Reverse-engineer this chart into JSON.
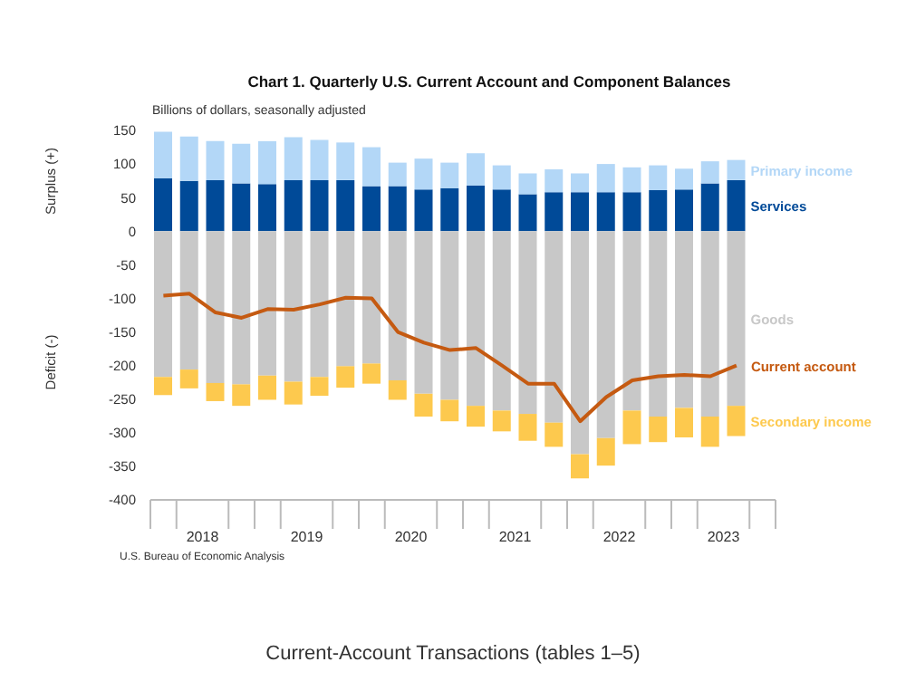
{
  "chart_data": {
    "type": "bar",
    "title": "Chart 1. Quarterly U.S. Current Account and Component Balances",
    "subtitle": "Billions of dollars, seasonally adjusted",
    "ylabel": "Surplus (+)",
    "annotations": [
      "Deficit (-)",
      "U.S. Bureau of Economic Analysis",
      "Current-Account Transactions (tables 1–5)"
    ],
    "x": [
      2018.125,
      2018.375,
      2018.625,
      2018.875,
      2019.125,
      2019.375,
      2019.625,
      2019.875,
      2020.125,
      2020.375,
      2020.625,
      2020.875,
      2021.125,
      2021.375,
      2021.625,
      2021.875,
      2022.125,
      2022.375,
      2022.625,
      2022.875,
      2023.125,
      2023.375,
      2023.625
    ],
    "stacked": true,
    "series": [
      {
        "name": "Services",
        "color": "#004a98",
        "values": [
          79,
          75,
          76,
          71,
          70,
          76,
          76,
          76,
          67,
          67,
          62,
          64,
          68,
          62,
          55,
          58,
          58,
          58,
          58,
          61,
          62,
          71,
          76
        ]
      },
      {
        "name": "Primary income",
        "color": "#b3d7f7",
        "values": [
          69,
          66,
          58,
          59,
          64,
          64,
          60,
          56,
          58,
          35,
          46,
          38,
          48,
          36,
          31,
          34,
          28,
          42,
          37,
          37,
          31,
          33,
          30
        ]
      },
      {
        "name": "Goods",
        "color": "#c8c8c8",
        "values": [
          -217,
          -206,
          -226,
          -228,
          -215,
          -224,
          -217,
          -201,
          -197,
          -222,
          -242,
          -251,
          -260,
          -267,
          -272,
          -285,
          -332,
          -308,
          -267,
          -276,
          -263,
          -276,
          -260
        ]
      },
      {
        "name": "Secondary income",
        "color": "#fdc94e",
        "values": [
          -27,
          -28,
          -27,
          -32,
          -36,
          -34,
          -28,
          -32,
          -30,
          -29,
          -34,
          -32,
          -31,
          -31,
          -40,
          -36,
          -36,
          -41,
          -50,
          -38,
          -44,
          -45,
          -45
        ]
      },
      {
        "name": "Current account",
        "type": "line",
        "color": "#c55a11",
        "values": [
          -96,
          -93,
          -121,
          -129,
          -116,
          -117,
          -109,
          -99,
          -100,
          -150,
          -166,
          -177,
          -174,
          -200,
          -227,
          -227,
          -283,
          -247,
          -222,
          -216,
          -214,
          -216,
          -200
        ]
      }
    ],
    "ylim": [
      -400,
      150
    ],
    "yticks": [
      -400,
      -350,
      -300,
      -250,
      -200,
      -150,
      -100,
      -50,
      0,
      50,
      100,
      150
    ],
    "xlim": [
      2018,
      2024
    ],
    "xticks": [
      {
        "value": 2018,
        "label": null
      },
      {
        "value": 2018.25,
        "label": null
      },
      {
        "value": 2018.5,
        "label": "2018"
      },
      {
        "value": 2018.75,
        "label": null
      },
      {
        "value": 2019,
        "label": null
      },
      {
        "value": 2019.25,
        "label": null
      },
      {
        "value": 2019.5,
        "label": "2019"
      },
      {
        "value": 2019.75,
        "label": null
      },
      {
        "value": 2020,
        "label": null
      },
      {
        "value": 2020.25,
        "label": null
      },
      {
        "value": 2020.5,
        "label": "2020"
      },
      {
        "value": 2020.75,
        "label": null
      },
      {
        "value": 2021,
        "label": null
      },
      {
        "value": 2021.25,
        "label": null
      },
      {
        "value": 2021.5,
        "label": "2021"
      },
      {
        "value": 2021.75,
        "label": null
      },
      {
        "value": 2022,
        "label": null
      },
      {
        "value": 2022.25,
        "label": null
      },
      {
        "value": 2022.5,
        "label": "2022"
      },
      {
        "value": 2022.75,
        "label": null
      },
      {
        "value": 2023,
        "label": null
      },
      {
        "value": 2023.25,
        "label": null
      },
      {
        "value": 2023.5,
        "label": "2023"
      },
      {
        "value": 2023.75,
        "label": null
      },
      {
        "value": 2024,
        "label": null
      }
    ],
    "grid": false,
    "legend": false,
    "marker": "none",
    "line_style": "solid"
  }
}
